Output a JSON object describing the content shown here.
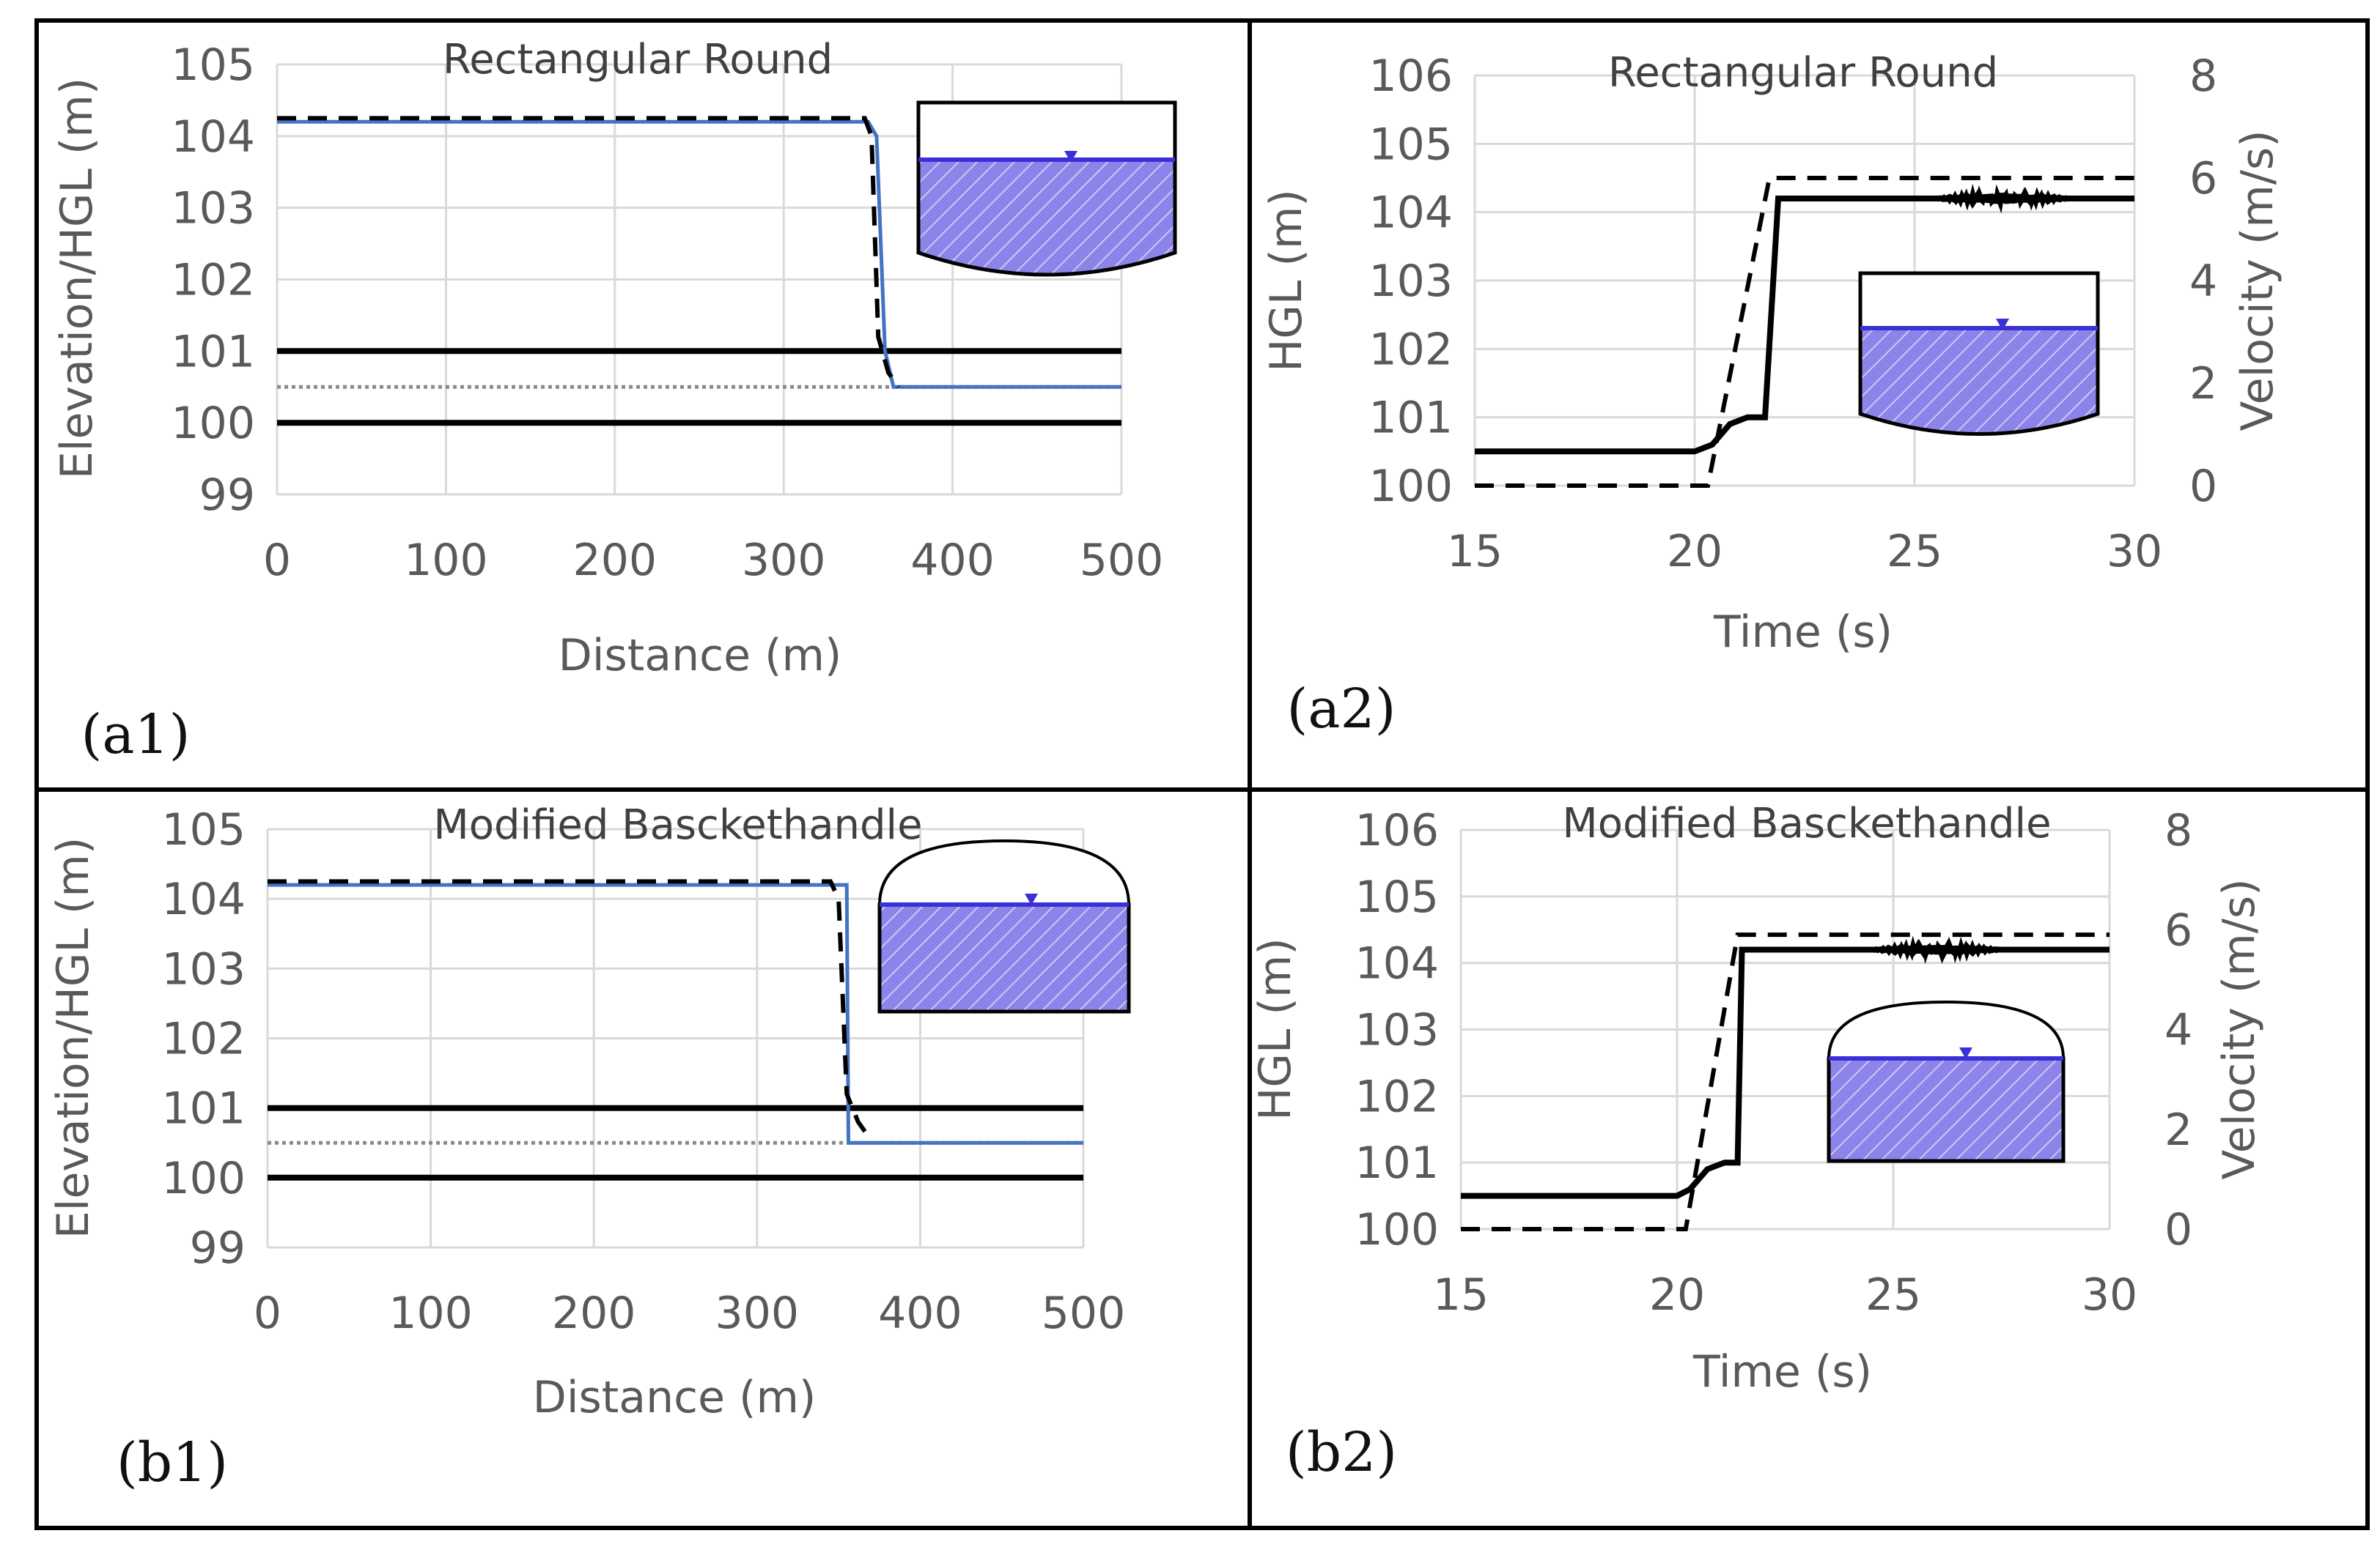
{
  "colors": {
    "water_fill": "#8c84e8",
    "water_line": "#3b2fd6",
    "hgl_line": "#4472c4",
    "black": "#000000",
    "grid": "#d9d9d9",
    "axis_text": "#595959"
  },
  "chart_data": [
    {
      "id": "a1",
      "type": "line",
      "panel_label": "(a1)",
      "title": "Rectangular Round",
      "xlabel": "Distance (m)",
      "ylabel": "Elevation/HGL (m)",
      "xlim": [
        0,
        500
      ],
      "ylim": [
        99,
        105
      ],
      "xticks": [
        "0",
        "100",
        "200",
        "300",
        "400",
        "500"
      ],
      "yticks": [
        "99",
        "100",
        "101",
        "102",
        "103",
        "104",
        "105"
      ],
      "legend": "none",
      "series": [
        {
          "name": "Pipe crown",
          "style": "solid-black",
          "x": [
            0,
            500
          ],
          "y": [
            101,
            101
          ]
        },
        {
          "name": "Pipe invert",
          "style": "solid-black",
          "x": [
            0,
            500
          ],
          "y": [
            100,
            100
          ]
        },
        {
          "name": "Initial water level",
          "style": "dotted-gray",
          "x": [
            0,
            500
          ],
          "y": [
            100.5,
            100.5
          ]
        },
        {
          "name": "HGL (blue)",
          "style": "solid-blue",
          "x": [
            0,
            350,
            355,
            360,
            365,
            500
          ],
          "y": [
            104.2,
            104.2,
            104.0,
            101.0,
            100.5,
            100.5
          ]
        },
        {
          "name": "HGL (dashed)",
          "style": "dashed-black",
          "x": [
            0,
            348,
            352,
            356,
            362,
            368
          ],
          "y": [
            104.25,
            104.25,
            104.0,
            101.2,
            100.7,
            100.5
          ]
        }
      ]
    },
    {
      "id": "a2",
      "type": "line",
      "panel_label": "(a2)",
      "title": "Rectangular Round",
      "xlabel": "Time (s)",
      "ylabel": "HGL (m)",
      "y2label": "Velocity (m/s)",
      "xlim": [
        15,
        30
      ],
      "ylim": [
        100,
        106
      ],
      "y2lim": [
        0,
        8
      ],
      "xticks": [
        "15",
        "20",
        "25",
        "30"
      ],
      "yticks": [
        "100",
        "101",
        "102",
        "103",
        "104",
        "105",
        "106"
      ],
      "y2ticks": [
        "0",
        "2",
        "4",
        "6",
        "8"
      ],
      "legend": "none",
      "series": [
        {
          "name": "HGL",
          "axis": "left",
          "style": "solid-black",
          "x": [
            15,
            20,
            20.4,
            20.8,
            21.2,
            21.6,
            21.9,
            30
          ],
          "y": [
            100.5,
            100.5,
            100.6,
            100.9,
            101.0,
            101.0,
            104.2,
            104.2
          ],
          "oscillation": {
            "from": 25.5,
            "to": 28.5,
            "amplitude": 0.08
          }
        },
        {
          "name": "Velocity",
          "axis": "right",
          "style": "dashed-black",
          "x": [
            15,
            20.3,
            21.7,
            30
          ],
          "y": [
            0,
            0,
            6,
            6
          ]
        }
      ]
    },
    {
      "id": "b1",
      "type": "line",
      "panel_label": "(b1)",
      "title": "Modified Basckethandle",
      "xlabel": "Distance (m)",
      "ylabel": "Elevation/HGL (m)",
      "xlim": [
        0,
        500
      ],
      "ylim": [
        99,
        105
      ],
      "xticks": [
        "0",
        "100",
        "200",
        "300",
        "400",
        "500"
      ],
      "yticks": [
        "99",
        "100",
        "101",
        "102",
        "103",
        "104",
        "105"
      ],
      "legend": "none",
      "series": [
        {
          "name": "Pipe crown",
          "style": "solid-black",
          "x": [
            0,
            500
          ],
          "y": [
            101,
            101
          ]
        },
        {
          "name": "Pipe invert",
          "style": "solid-black",
          "x": [
            0,
            500
          ],
          "y": [
            100,
            100
          ]
        },
        {
          "name": "Initial water level",
          "style": "dotted-gray",
          "x": [
            0,
            500
          ],
          "y": [
            100.5,
            100.5
          ]
        },
        {
          "name": "HGL (blue)",
          "style": "solid-blue",
          "x": [
            0,
            355,
            356,
            500
          ],
          "y": [
            104.2,
            104.2,
            100.5,
            100.5
          ]
        },
        {
          "name": "HGL (dashed)",
          "style": "dashed-black",
          "x": [
            0,
            345,
            350,
            355,
            362,
            368
          ],
          "y": [
            104.25,
            104.25,
            104.0,
            101.2,
            100.8,
            100.6
          ]
        }
      ]
    },
    {
      "id": "b2",
      "type": "line",
      "panel_label": "(b2)",
      "title": "Modified Basckethandle",
      "xlabel": "Time (s)",
      "ylabel": "HGL (m)",
      "y2label": "Velocity (m/s)",
      "xlim": [
        15,
        30
      ],
      "ylim": [
        100,
        106
      ],
      "y2lim": [
        0,
        8
      ],
      "xticks": [
        "15",
        "20",
        "25",
        "30"
      ],
      "yticks": [
        "100",
        "101",
        "102",
        "103",
        "104",
        "105",
        "106"
      ],
      "y2ticks": [
        "0",
        "2",
        "4",
        "6",
        "8"
      ],
      "legend": "none",
      "series": [
        {
          "name": "HGL",
          "axis": "left",
          "style": "solid-black",
          "x": [
            15,
            20,
            20.3,
            20.7,
            21.1,
            21.4,
            21.5,
            30
          ],
          "y": [
            100.5,
            100.5,
            100.6,
            100.9,
            101.0,
            101.0,
            104.2,
            104.2
          ],
          "oscillation": {
            "from": 24.5,
            "to": 27.5,
            "amplitude": 0.07
          }
        },
        {
          "name": "Velocity",
          "axis": "right",
          "style": "dashed-black",
          "x": [
            15,
            20.2,
            21.4,
            30
          ],
          "y": [
            0,
            0,
            5.9,
            5.9
          ]
        }
      ]
    }
  ]
}
